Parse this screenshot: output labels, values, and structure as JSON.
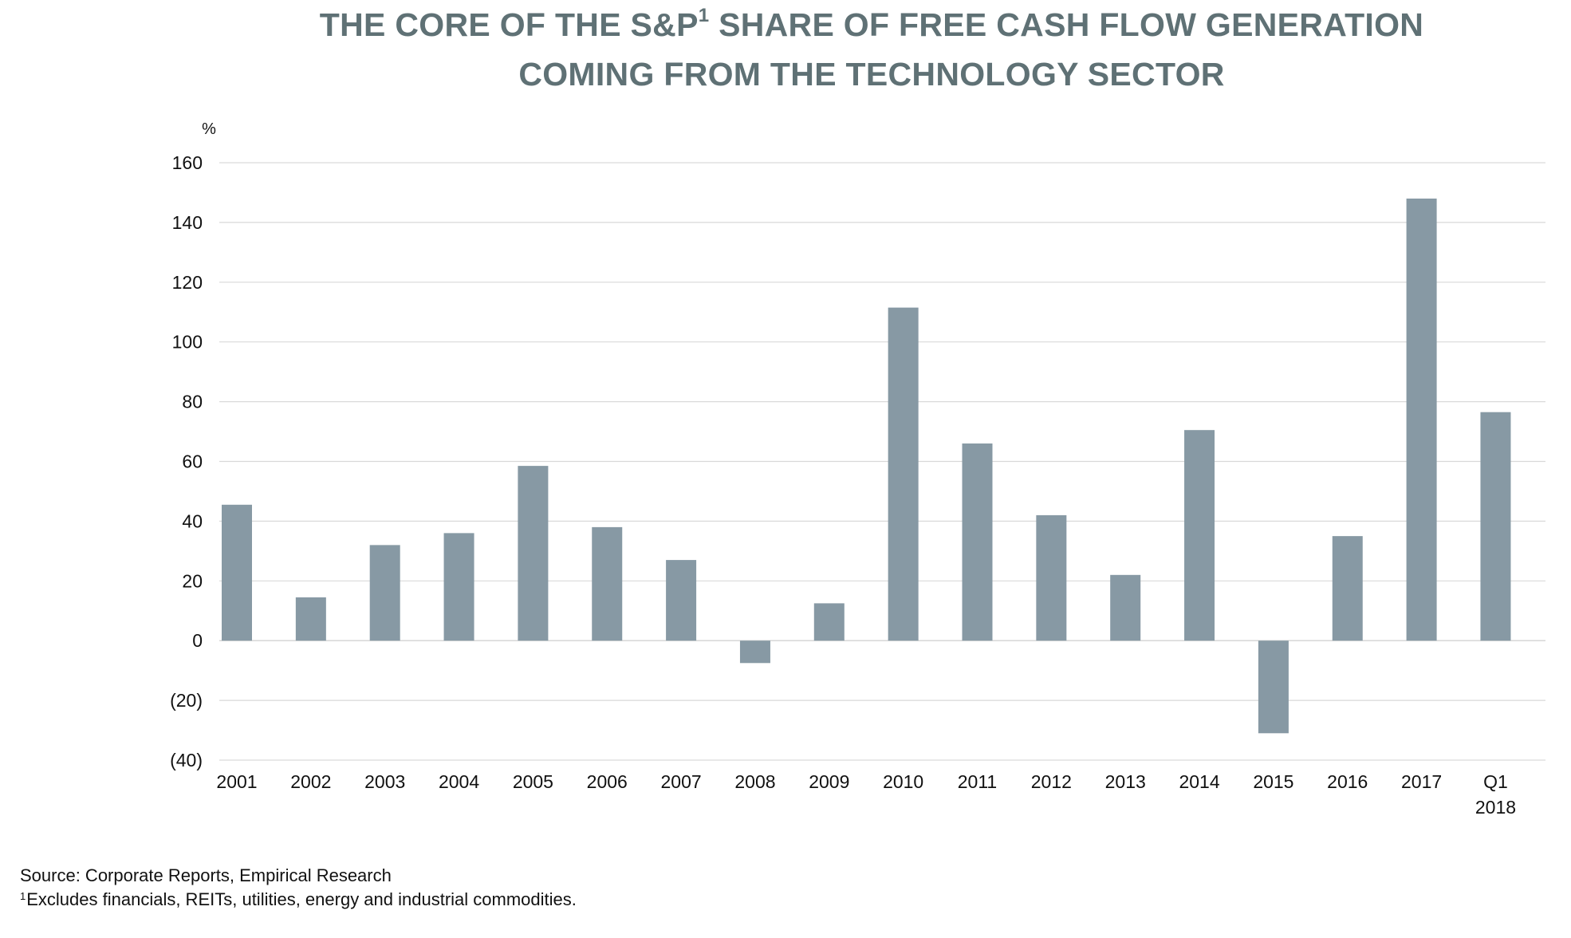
{
  "title": {
    "line1_prefix": "THE CORE OF THE S&P",
    "line1_sup": "1",
    "line1_suffix": " SHARE OF FREE CASH FLOW GENERATION",
    "line2": "COMING FROM THE TECHNOLOGY SECTOR"
  },
  "footnotes": {
    "source": "Source: Corporate Reports, Empirical Research",
    "note_sup": "1",
    "note": "Excludes financials, REITs, utilities, energy and industrial commodities."
  },
  "colors": {
    "bar": "#8799a4",
    "grid": "#d9d9d9",
    "title": "#5f7175",
    "text": "#111111"
  },
  "chart_data": {
    "type": "bar",
    "unit_label": "%",
    "categories": [
      [
        "2001"
      ],
      [
        "2002"
      ],
      [
        "2003"
      ],
      [
        "2004"
      ],
      [
        "2005"
      ],
      [
        "2006"
      ],
      [
        "2007"
      ],
      [
        "2008"
      ],
      [
        "2009"
      ],
      [
        "2010"
      ],
      [
        "2011"
      ],
      [
        "2012"
      ],
      [
        "2013"
      ],
      [
        "2014"
      ],
      [
        "2015"
      ],
      [
        "2016"
      ],
      [
        "2017"
      ],
      [
        "Q1",
        "2018"
      ]
    ],
    "values": [
      45.5,
      14.5,
      32,
      36,
      58.5,
      38,
      27,
      -7.5,
      12.5,
      111.5,
      66,
      42,
      22,
      70.5,
      -31,
      35,
      148,
      76.5
    ],
    "ylim": [
      -40,
      160
    ],
    "yticks": [
      160,
      140,
      120,
      100,
      80,
      60,
      40,
      20,
      0,
      -20,
      -40
    ],
    "ytick_labels": [
      "160",
      "140",
      "120",
      "100",
      "80",
      "60",
      "40",
      "20",
      "0",
      "(20)",
      "(40)"
    ],
    "grid": true,
    "legend": "none"
  }
}
